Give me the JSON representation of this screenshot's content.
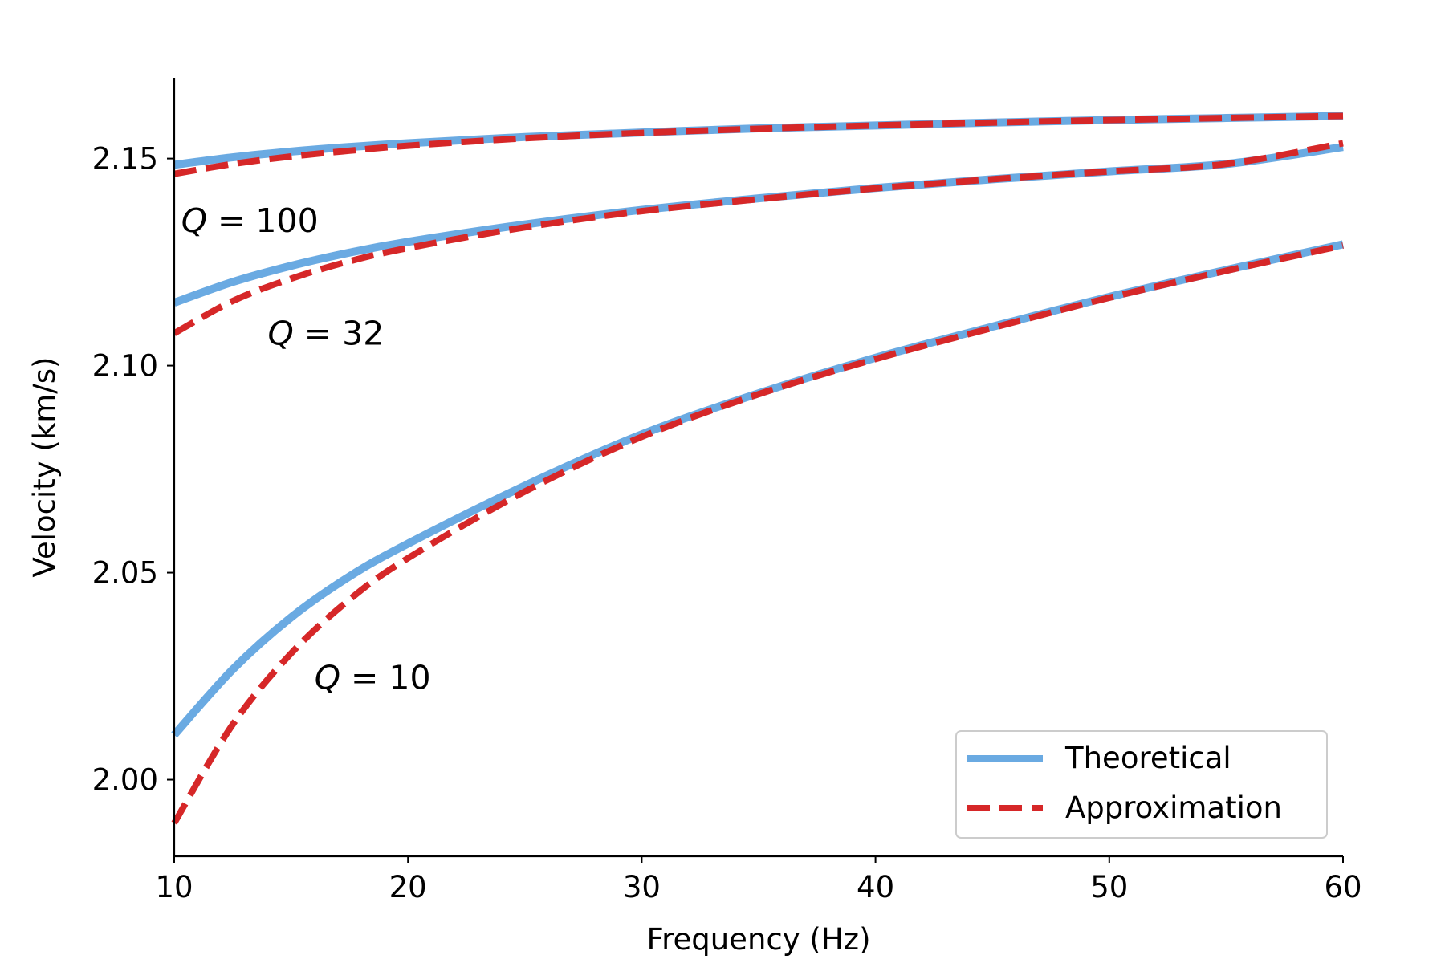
{
  "chart_data": {
    "type": "line",
    "title": "",
    "xlabel": "Frequency (Hz)",
    "ylabel": "Velocity (km/s)",
    "xlim": [
      10,
      60
    ],
    "ylim": [
      1.9815,
      2.1695
    ],
    "x_ticks": [
      10,
      20,
      30,
      40,
      50,
      60
    ],
    "y_ticks": [
      2.0,
      2.05,
      2.1,
      2.15
    ],
    "x_tick_labels": [
      "10",
      "20",
      "30",
      "40",
      "50",
      "60"
    ],
    "y_tick_labels": [
      "2.00",
      "2.05",
      "2.10",
      "2.15"
    ],
    "grid": false,
    "legend_position": "bottom-right",
    "legend": [
      {
        "label": "Theoretical",
        "color": "#6aaae2",
        "style": "solid"
      },
      {
        "label": "Approximation",
        "color": "#d62728",
        "style": "dashed"
      }
    ],
    "x": [
      10,
      12.5,
      15,
      17.5,
      20,
      25,
      30,
      35,
      40,
      45,
      50,
      55,
      60
    ],
    "series": [
      {
        "name": "Theoretical",
        "group": "Q=100",
        "style": "solid",
        "color": "#6aaae2",
        "values": [
          2.1485,
          2.1503,
          2.1517,
          2.1528,
          2.1537,
          2.1552,
          2.1563,
          2.1573,
          2.158,
          2.1587,
          2.1593,
          2.1598,
          2.1603
        ]
      },
      {
        "name": "Approximation",
        "group": "Q=100",
        "style": "dashed",
        "color": "#d62728",
        "values": [
          2.1463,
          2.1487,
          2.1505,
          2.1519,
          2.1531,
          2.1549,
          2.1562,
          2.1572,
          2.158,
          2.1587,
          2.1593,
          2.1598,
          2.1603
        ]
      },
      {
        "name": "Theoretical",
        "group": "Q=32",
        "style": "solid",
        "color": "#6aaae2",
        "values": [
          2.1152,
          2.1202,
          2.1241,
          2.1273,
          2.1299,
          2.1341,
          2.1376,
          2.1404,
          2.1429,
          2.145,
          2.1469,
          2.1487,
          2.1528
        ]
      },
      {
        "name": "Approximation",
        "group": "Q=32",
        "style": "dashed",
        "color": "#d62728",
        "values": [
          2.1078,
          2.1156,
          2.121,
          2.1252,
          2.1284,
          2.1334,
          2.1373,
          2.1402,
          2.1428,
          2.145,
          2.1469,
          2.1487,
          2.1537
        ]
      },
      {
        "name": "Theoretical",
        "group": "Q=10",
        "style": "solid",
        "color": "#6aaae2",
        "values": [
          2.0108,
          2.0266,
          2.0392,
          2.0491,
          2.057,
          2.071,
          2.0834,
          2.0933,
          2.1019,
          2.1094,
          2.1166,
          2.1231,
          2.1293
        ]
      },
      {
        "name": "Approximation",
        "group": "Q=10",
        "style": "dashed",
        "color": "#d62728",
        "values": [
          1.9895,
          2.0133,
          2.0305,
          2.0435,
          2.0535,
          2.0696,
          2.0828,
          2.0931,
          2.1016,
          2.1091,
          2.1164,
          2.1229,
          2.129
        ]
      }
    ],
    "annotations": [
      {
        "id": "q100",
        "prefix": "Q",
        "text": " = 100",
        "x": 10.3,
        "y": 2.1323
      },
      {
        "id": "q32",
        "prefix": "Q",
        "text": " = 32",
        "x": 14.0,
        "y": 2.1051
      },
      {
        "id": "q10",
        "prefix": "Q",
        "text": " = 10",
        "x": 16.0,
        "y": 2.0219
      }
    ]
  }
}
